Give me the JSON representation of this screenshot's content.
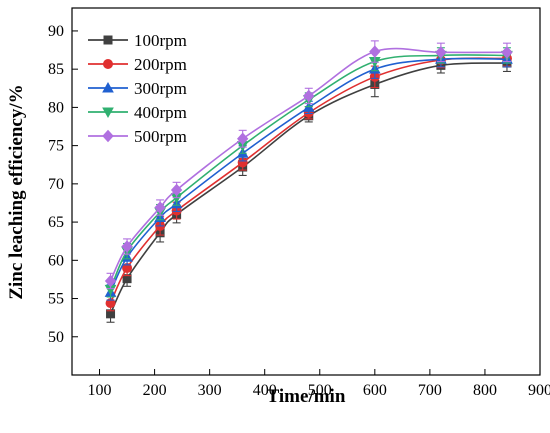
{
  "chart_data": {
    "type": "line",
    "xlabel": "Time/min",
    "ylabel": "Zinc leaching efficiency/%",
    "xlim": [
      50,
      900
    ],
    "ylim": [
      45,
      93
    ],
    "xticks": [
      100,
      200,
      300,
      400,
      500,
      600,
      700,
      800,
      900
    ],
    "yticks": [
      50,
      55,
      60,
      65,
      70,
      75,
      80,
      85,
      90
    ],
    "legend_position": "top-left",
    "x": [
      120,
      150,
      210,
      240,
      360,
      480,
      600,
      720,
      840
    ],
    "series": [
      {
        "name": "100rpm",
        "color": "#404040",
        "marker": "square",
        "values": [
          53.0,
          57.6,
          63.6,
          66.0,
          72.2,
          78.9,
          83.0,
          85.5,
          85.8
        ],
        "errors": [
          1.1,
          1.0,
          1.2,
          1.1,
          1.1,
          0.8,
          1.6,
          1.0,
          1.1
        ]
      },
      {
        "name": "200rpm",
        "color": "#e03030",
        "marker": "circle",
        "values": [
          54.4,
          59.0,
          64.5,
          66.5,
          72.8,
          79.3,
          84.0,
          86.2,
          86.4
        ],
        "errors": [
          1.0,
          1.0,
          1.2,
          1.1,
          1.0,
          0.8,
          1.4,
          1.0,
          1.0
        ]
      },
      {
        "name": "300rpm",
        "color": "#2060d0",
        "marker": "triangle-up",
        "values": [
          55.8,
          60.4,
          65.6,
          67.4,
          74.0,
          80.0,
          85.0,
          86.3,
          86.3
        ],
        "errors": [
          1.0,
          1.0,
          1.1,
          1.0,
          1.0,
          0.8,
          1.2,
          1.0,
          1.0
        ]
      },
      {
        "name": "400rpm",
        "color": "#30b070",
        "marker": "triangle-down",
        "values": [
          56.2,
          61.2,
          66.3,
          68.2,
          75.0,
          81.0,
          86.0,
          86.8,
          86.8
        ],
        "errors": [
          1.0,
          1.0,
          1.0,
          1.0,
          1.0,
          0.9,
          1.2,
          1.0,
          1.0
        ]
      },
      {
        "name": "500rpm",
        "color": "#b070e0",
        "marker": "diamond",
        "values": [
          57.3,
          61.8,
          66.9,
          69.2,
          75.9,
          81.5,
          87.3,
          87.2,
          87.2
        ],
        "errors": [
          1.0,
          1.0,
          1.0,
          1.0,
          1.1,
          1.0,
          1.4,
          1.2,
          1.2
        ]
      }
    ]
  }
}
